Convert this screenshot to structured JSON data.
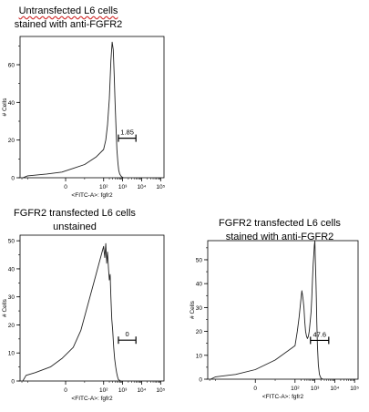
{
  "chart_data": [
    {
      "type": "line",
      "subtype": "histogram",
      "title_lines": [
        "Untransfected  L6 cells",
        "stained with  anti-FGFR2"
      ],
      "xlabel": "<FITC-A>: fgfr2",
      "ylabel": "# Cells",
      "x_scale": "biexponential",
      "x_ticks": [
        "0",
        "10²",
        "10³",
        "10⁴",
        "10⁵"
      ],
      "x_tick_values": [
        0,
        100,
        1000,
        10000,
        100000
      ],
      "ylim": [
        0,
        75
      ],
      "y_ticks": [
        0,
        20,
        40,
        60
      ],
      "gate": {
        "label": "1.85",
        "x_start": 600,
        "x_end": 5000
      },
      "x": [
        -180,
        -100,
        -50,
        -10,
        20,
        50,
        80,
        100,
        130,
        160,
        200,
        240,
        280,
        320,
        360,
        400,
        450,
        500,
        560,
        620,
        700,
        800,
        900,
        1100
      ],
      "y": [
        0,
        1,
        2,
        3,
        5,
        7,
        11,
        15,
        20,
        28,
        42,
        62,
        72,
        68,
        55,
        40,
        26,
        15,
        8,
        4,
        2,
        1,
        0.5,
        0
      ]
    },
    {
      "type": "line",
      "subtype": "histogram",
      "title_lines": [
        "FGFR2 transfected  L6 cells",
        "unstained"
      ],
      "xlabel": "<FITC-A>: fgfr2",
      "ylabel": "# Cells",
      "x_scale": "biexponential",
      "x_ticks": [
        "0",
        "10²",
        "10³",
        "10⁴",
        "10⁵"
      ],
      "x_tick_values": [
        0,
        100,
        1000,
        10000,
        100000
      ],
      "ylim": [
        0,
        52
      ],
      "y_ticks": [
        0,
        10,
        20,
        30,
        40,
        50
      ],
      "gate": {
        "label": "0",
        "x_start": 600,
        "x_end": 5000
      },
      "x": [
        -180,
        -120,
        -80,
        -40,
        -10,
        20,
        40,
        60,
        80,
        100,
        115,
        130,
        145,
        160,
        180,
        200,
        220,
        240,
        270,
        300,
        340,
        380,
        430,
        480,
        540,
        600,
        700,
        800
      ],
      "y": [
        0,
        2,
        3,
        5,
        8,
        12,
        18,
        28,
        38,
        48,
        44,
        49,
        42,
        46,
        40,
        36,
        38,
        30,
        22,
        18,
        12,
        8,
        5,
        3,
        1.5,
        0.5,
        0.2,
        0
      ]
    },
    {
      "type": "line",
      "subtype": "histogram",
      "title_lines": [
        "FGFR2 transfected  L6 cells",
        "stained with  anti-FGFR2"
      ],
      "xlabel": "<FITC-A>: fgfr2",
      "ylabel": "# Cells",
      "x_scale": "biexponential",
      "x_ticks": [
        "0",
        "10²",
        "10³",
        "10⁴",
        "10⁵"
      ],
      "x_tick_values": [
        0,
        100,
        1000,
        10000,
        100000
      ],
      "ylim": [
        0,
        58
      ],
      "y_ticks": [
        0,
        10,
        20,
        30,
        40,
        50
      ],
      "gate": {
        "label": "47.6",
        "x_start": 600,
        "x_end": 5000
      },
      "x": [
        -180,
        -100,
        -50,
        0,
        50,
        100,
        130,
        160,
        190,
        220,
        250,
        280,
        310,
        340,
        380,
        420,
        470,
        520,
        580,
        640,
        700,
        760,
        820,
        880,
        940,
        1000,
        1060,
        1120,
        1180,
        1250,
        1350,
        1500,
        1700,
        2000,
        2500
      ],
      "y": [
        0,
        1,
        2,
        4,
        8,
        14,
        20,
        26,
        32,
        37,
        34,
        30,
        24,
        20,
        18,
        17,
        18,
        20,
        24,
        28,
        34,
        42,
        48,
        52,
        56,
        58,
        50,
        42,
        34,
        24,
        14,
        6,
        2,
        0.5,
        0
      ]
    }
  ]
}
